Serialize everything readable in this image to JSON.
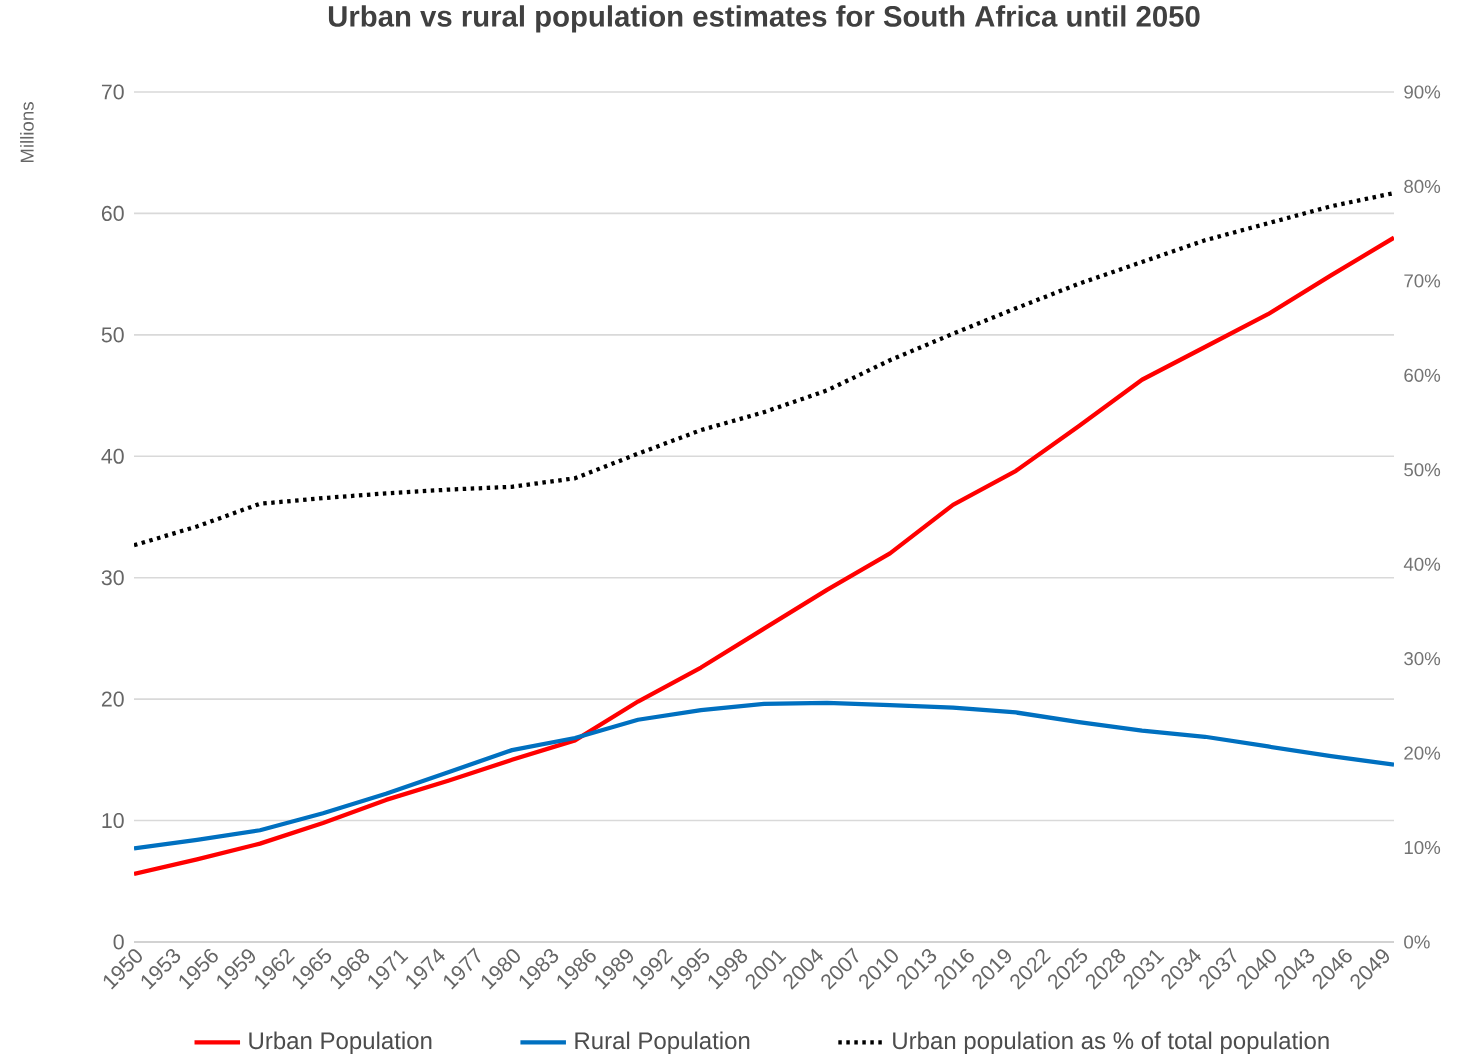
{
  "chart_data": {
    "type": "line",
    "title": "Urban vs rural population estimates for South Africa until 2050",
    "ylabel": "Millions",
    "x": [
      1950,
      1955,
      1960,
      1965,
      1970,
      1975,
      1980,
      1985,
      1990,
      1995,
      2000,
      2005,
      2010,
      2015,
      2020,
      2025,
      2030,
      2035,
      2040,
      2045,
      2050
    ],
    "xlim": [
      1950,
      2050
    ],
    "xticks": [
      1950,
      1953,
      1956,
      1959,
      1962,
      1965,
      1968,
      1971,
      1974,
      1977,
      1980,
      1983,
      1986,
      1989,
      1992,
      1995,
      1998,
      2001,
      2004,
      2007,
      2010,
      2013,
      2016,
      2019,
      2022,
      2025,
      2028,
      2031,
      2034,
      2037,
      2040,
      2043,
      2046,
      2049
    ],
    "ylim": [
      0,
      70
    ],
    "yticks": [
      0,
      10,
      20,
      30,
      40,
      50,
      60,
      70
    ],
    "y2lim": [
      0,
      90
    ],
    "y2ticks": [
      {
        "value": 0,
        "label": "0%"
      },
      {
        "value": 10,
        "label": "10%"
      },
      {
        "value": 20,
        "label": "20%"
      },
      {
        "value": 30,
        "label": "30%"
      },
      {
        "value": 40,
        "label": "40%"
      },
      {
        "value": 50,
        "label": "50%"
      },
      {
        "value": 60,
        "label": "60%"
      },
      {
        "value": 70,
        "label": "70%"
      },
      {
        "value": 80,
        "label": "80%"
      },
      {
        "value": 90,
        "label": "90%"
      }
    ],
    "grid": "y",
    "legend": "bottom",
    "series": [
      {
        "name": "Urban Population",
        "color": "#ff0000",
        "line_style": "solid",
        "values": [
          5.6,
          6.8,
          8.1,
          9.8,
          11.7,
          13.3,
          15.0,
          16.6,
          19.8,
          22.6,
          25.8,
          29.0,
          32.0,
          36.0,
          38.8,
          42.5,
          46.3,
          49.0,
          51.7,
          54.9,
          58.0
        ]
      },
      {
        "name": "Rural Population",
        "color": "#0070c0",
        "line_style": "solid",
        "values": [
          7.7,
          8.4,
          9.2,
          10.6,
          12.2,
          14.0,
          15.8,
          16.8,
          18.3,
          19.1,
          19.6,
          19.7,
          19.5,
          19.3,
          18.9,
          18.1,
          17.4,
          16.9,
          16.1,
          15.3,
          14.6
        ]
      },
      {
        "name": "Urban population as % of total population",
        "color": "#000000",
        "line_style": "dotted",
        "axis": "y2",
        "values": [
          42.0,
          44.0,
          46.4,
          47.0,
          47.5,
          47.9,
          48.2,
          49.1,
          51.7,
          54.2,
          56.1,
          58.4,
          61.6,
          64.4,
          67.1,
          69.7,
          72.0,
          74.3,
          76.1,
          77.9,
          79.3
        ]
      }
    ]
  }
}
